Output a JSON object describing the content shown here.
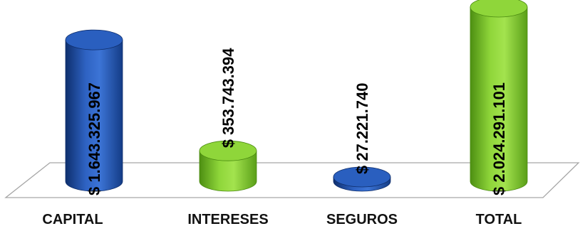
{
  "chart_data": {
    "type": "bar",
    "title": "",
    "xlabel": "",
    "ylabel": "",
    "categories": [
      "CAPITAL",
      "INTERESES",
      "SEGUROS",
      "TOTAL"
    ],
    "values": [
      1643325967,
      353743394,
      27221740,
      2024291101
    ],
    "data_labels": [
      "$ 1.643.325.967",
      "$ 353.743.394",
      "$ 27.221.740",
      "$ 2.024.291.101"
    ],
    "bar_colors": [
      "#1f4ea3",
      "#7dc428",
      "#1f4ea3",
      "#7dc428"
    ],
    "bar_shape": "cylinder-3d",
    "ylim": [
      0,
      2024291101
    ],
    "grid": false,
    "legend": "none"
  }
}
